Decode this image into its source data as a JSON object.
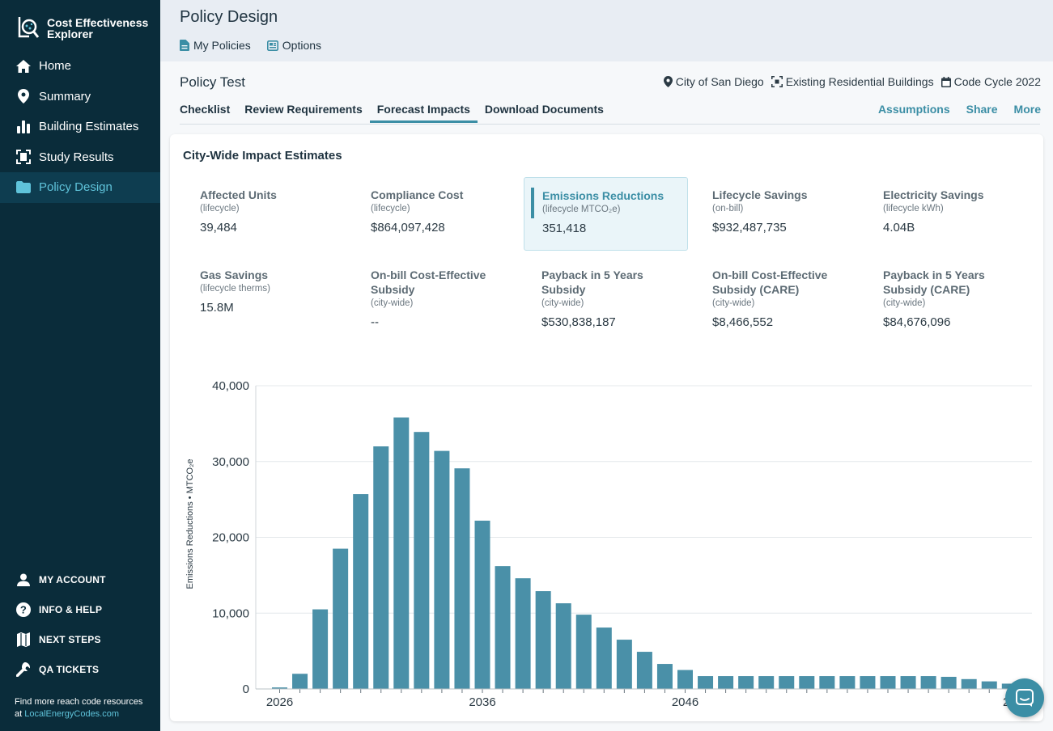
{
  "brand": {
    "line1": "Cost Effectiveness",
    "line2": "Explorer"
  },
  "nav": [
    {
      "label": "Home",
      "icon": "home-icon"
    },
    {
      "label": "Summary",
      "icon": "map-pin-icon"
    },
    {
      "label": "Building Estimates",
      "icon": "bar-chart-icon"
    },
    {
      "label": "Study Results",
      "icon": "building-icon"
    },
    {
      "label": "Policy Design",
      "icon": "policy-icon",
      "active": true
    }
  ],
  "nav_secondary": [
    {
      "label": "MY ACCOUNT",
      "icon": "user-icon"
    },
    {
      "label": "INFO & HELP",
      "icon": "help-icon"
    },
    {
      "label": "NEXT STEPS",
      "icon": "map-icon"
    },
    {
      "label": "QA TICKETS",
      "icon": "wrench-icon"
    }
  ],
  "footer": {
    "text": "Find more reach code resources",
    "prefix": "at ",
    "link": "LocalEnergyCodes.com"
  },
  "header": {
    "title": "Policy Design",
    "subnav": [
      {
        "label": "My Policies",
        "icon": "document-icon"
      },
      {
        "label": "Options",
        "icon": "options-icon"
      }
    ]
  },
  "policy": {
    "name": "Policy Test",
    "meta": [
      {
        "label": "City of San Diego",
        "icon": "location-icon"
      },
      {
        "label": "Existing Residential Buildings",
        "icon": "building-scan-icon"
      },
      {
        "label": "Code Cycle 2022",
        "icon": "calendar-icon"
      }
    ],
    "tabs": [
      {
        "label": "Checklist"
      },
      {
        "label": "Review Requirements"
      },
      {
        "label": "Forecast Impacts",
        "active": true
      },
      {
        "label": "Download Documents"
      }
    ],
    "actions": [
      "Assumptions",
      "Share",
      "More"
    ]
  },
  "card": {
    "title": "City-Wide Impact Estimates",
    "metrics": [
      {
        "label": "Affected Units",
        "sub": "(lifecycle)",
        "value": "39,484"
      },
      {
        "label": "Compliance Cost",
        "sub": "(lifecycle)",
        "value": "$864,097,428"
      },
      {
        "label": "Emissions Reductions",
        "sub": "(lifecycle MTCO₂e)",
        "value": "351,418",
        "active": true
      },
      {
        "label": "Lifecycle Savings",
        "sub": "(on-bill)",
        "value": "$932,487,735"
      },
      {
        "label": "Electricity Savings",
        "sub": "(lifecycle kWh)",
        "value": "4.04B"
      },
      {
        "label": "Gas Savings",
        "sub": "(lifecycle therms)",
        "value": "15.8M"
      },
      {
        "label": "On-bill Cost-Effective Subsidy",
        "sub": "(city-wide)",
        "value": "--"
      },
      {
        "label": "Payback in 5 Years Subsidy",
        "sub": "(city-wide)",
        "value": "$530,838,187"
      },
      {
        "label": "On-bill Cost-Effective Subsidy (CARE)",
        "sub": "(city-wide)",
        "value": "$8,466,552"
      },
      {
        "label": "Payback in 5 Years Subsidy (CARE)",
        "sub": "(city-wide)",
        "value": "$84,676,096"
      }
    ]
  },
  "chart_data": {
    "type": "bar",
    "ylabel": "Emissions Reductions • MTCO₂e",
    "ylim": [
      0,
      40000
    ],
    "yticks": [
      0,
      10000,
      20000,
      30000,
      40000
    ],
    "ytick_labels": [
      "0",
      "10,000",
      "20,000",
      "30,000",
      "40,000"
    ],
    "xtick_labels": [
      "2026",
      "2036",
      "2046",
      "20"
    ],
    "x": [
      2026,
      2027,
      2028,
      2029,
      2030,
      2031,
      2032,
      2033,
      2034,
      2035,
      2036,
      2037,
      2038,
      2039,
      2040,
      2041,
      2042,
      2043,
      2044,
      2045,
      2046,
      2047,
      2048,
      2049,
      2050,
      2051,
      2052,
      2053,
      2054,
      2055,
      2056,
      2057,
      2058,
      2059,
      2060,
      2061,
      2062,
      2063
    ],
    "values": [
      200,
      2000,
      10500,
      18500,
      25700,
      32000,
      35800,
      33900,
      31400,
      29100,
      22200,
      16200,
      14600,
      12900,
      11300,
      9800,
      8100,
      6500,
      4900,
      3300,
      2500,
      1700,
      1700,
      1700,
      1700,
      1700,
      1700,
      1700,
      1700,
      1700,
      1700,
      1700,
      1700,
      1600,
      1300,
      1000,
      700,
      400
    ],
    "bar_color": "#4a90a8",
    "grid": true
  },
  "colors": {
    "sidebar": "#0a2c3a",
    "accent": "#3b8ea5",
    "active_nav": "#5fc3da"
  }
}
